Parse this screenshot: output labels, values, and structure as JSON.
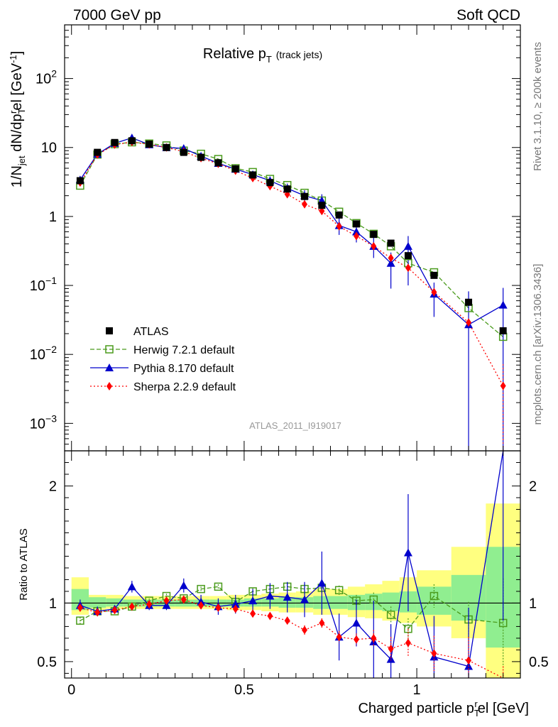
{
  "header": {
    "left": "7000 GeV pp",
    "right": "Soft QCD"
  },
  "side_labels": {
    "rivet": "Rivet 3.1.10, ≥ 200k events",
    "mcplots": "mcplots.cern.ch [arXiv:1306.3436]"
  },
  "chart_data": {
    "type": "line",
    "title_main": "Relative p",
    "title_sub": "T",
    "title_tail": "(track jets)",
    "analysis_id": "ATLAS_2011_I919017",
    "xlabel": "Charged particle p",
    "xlabel_sub": "T",
    "xlabel_sup": "r",
    "xlabel_tail": "el [GeV]",
    "ylabel": "1/N",
    "ylabel_sub": "jet",
    "ylabel_mid": " dN/dp",
    "ylabel_sub2": "T",
    "ylabel_sup2": "r",
    "ylabel_tail": "el [GeV",
    "ylabel_sup3": "-1",
    "ylabel_end": "]",
    "ratio_ylabel": "Ratio to ATLAS",
    "xlim": [
      -0.02,
      1.3
    ],
    "ylim_log": [
      0.0004,
      600
    ],
    "ratio_ylim": [
      0.36,
      2.3
    ],
    "x_ticks": [
      "0",
      "0.5",
      "1"
    ],
    "x_tick_values": [
      0,
      0.5,
      1
    ],
    "y_ticks": [
      {
        "base": "10",
        "exp": "2",
        "value": 100
      },
      {
        "base": "10",
        "exp": "",
        "value": 10
      },
      {
        "base": "1",
        "exp": "",
        "value": 1
      },
      {
        "base": "10",
        "exp": "−1",
        "value": 0.1
      },
      {
        "base": "10",
        "exp": "−2",
        "value": 0.01
      },
      {
        "base": "10",
        "exp": "−3",
        "value": 0.001
      }
    ],
    "ratio_ticks": [
      "2",
      "1",
      "0.5"
    ],
    "ratio_tick_values": [
      2,
      1,
      0.5
    ],
    "bin_edges": [
      0,
      0.05,
      0.1,
      0.15,
      0.2,
      0.25,
      0.3,
      0.35,
      0.4,
      0.45,
      0.5,
      0.55,
      0.6,
      0.65,
      0.7,
      0.75,
      0.8,
      0.85,
      0.9,
      0.95,
      1.0,
      1.1,
      1.2,
      1.3
    ],
    "x": [
      0.025,
      0.075,
      0.125,
      0.175,
      0.225,
      0.275,
      0.325,
      0.375,
      0.425,
      0.475,
      0.525,
      0.575,
      0.625,
      0.675,
      0.725,
      0.775,
      0.825,
      0.875,
      0.925,
      0.975,
      1.05,
      1.15,
      1.25
    ],
    "band_inner": [
      [
        0.94,
        1.12
      ],
      [
        0.96,
        1.05
      ],
      [
        0.97,
        1.04
      ],
      [
        0.97,
        1.03
      ],
      [
        0.97,
        1.03
      ],
      [
        0.97,
        1.03
      ],
      [
        0.97,
        1.03
      ],
      [
        0.97,
        1.03
      ],
      [
        0.97,
        1.03
      ],
      [
        0.97,
        1.03
      ],
      [
        0.97,
        1.04
      ],
      [
        0.97,
        1.04
      ],
      [
        0.96,
        1.05
      ],
      [
        0.96,
        1.05
      ],
      [
        0.95,
        1.06
      ],
      [
        0.95,
        1.06
      ],
      [
        0.94,
        1.07
      ],
      [
        0.94,
        1.08
      ],
      [
        0.93,
        1.09
      ],
      [
        0.92,
        1.1
      ],
      [
        0.9,
        1.14
      ],
      [
        0.85,
        1.24
      ],
      [
        0.62,
        1.48
      ]
    ],
    "band_outer": [
      [
        0.9,
        1.22
      ],
      [
        0.94,
        1.07
      ],
      [
        0.95,
        1.07
      ],
      [
        0.95,
        1.06
      ],
      [
        0.95,
        1.06
      ],
      [
        0.95,
        1.06
      ],
      [
        0.95,
        1.06
      ],
      [
        0.95,
        1.06
      ],
      [
        0.95,
        1.06
      ],
      [
        0.94,
        1.07
      ],
      [
        0.94,
        1.07
      ],
      [
        0.93,
        1.08
      ],
      [
        0.92,
        1.09
      ],
      [
        0.92,
        1.1
      ],
      [
        0.9,
        1.12
      ],
      [
        0.9,
        1.12
      ],
      [
        0.88,
        1.14
      ],
      [
        0.87,
        1.16
      ],
      [
        0.85,
        1.19
      ],
      [
        0.83,
        1.22
      ],
      [
        0.8,
        1.28
      ],
      [
        0.7,
        1.48
      ],
      [
        0.36,
        1.85
      ]
    ],
    "series": [
      {
        "name": "ATLAS",
        "style": "data",
        "color": "#000000",
        "values": [
          3.3,
          8.5,
          11.8,
          12.5,
          11.2,
          10.0,
          8.5,
          7.2,
          6.0,
          4.9,
          4.0,
          3.1,
          2.5,
          1.95,
          1.45,
          1.05,
          0.78,
          0.55,
          0.41,
          0.27,
          0.14,
          0.057,
          0.022
        ]
      },
      {
        "name": "Herwig 7.2.1 default",
        "style": "herwig",
        "color": "#4a9b1c",
        "values": [
          2.8,
          7.9,
          11.2,
          11.9,
          11.4,
          10.7,
          9.0,
          8.1,
          6.8,
          5.0,
          4.4,
          3.5,
          2.85,
          2.2,
          1.7,
          1.17,
          0.8,
          0.56,
          0.37,
          0.21,
          0.155,
          0.047,
          0.018
        ],
        "ratio": [
          0.85,
          0.93,
          0.93,
          0.97,
          1.02,
          1.06,
          1.04,
          1.12,
          1.14,
          1.01,
          1.1,
          1.12,
          1.14,
          1.12,
          1.13,
          1.11,
          1.02,
          1.03,
          0.9,
          0.78,
          1.06,
          0.86,
          0.83
        ],
        "ratio_err": [
          0.03,
          0.02,
          0.02,
          0.02,
          0.02,
          0.02,
          0.02,
          0.02,
          0.02,
          0.02,
          0.03,
          0.03,
          0.03,
          0.04,
          0.04,
          0.04,
          0.05,
          0.06,
          0.07,
          0.09,
          0.1,
          0.15,
          0.38
        ]
      },
      {
        "name": "Pythia 8.170 default",
        "style": "pythia",
        "color": "#0000cc",
        "values": [
          3.4,
          8.0,
          11.5,
          13.8,
          11.0,
          10.0,
          9.7,
          7.5,
          5.9,
          4.85,
          4.05,
          3.3,
          2.55,
          2.0,
          1.7,
          0.74,
          0.6,
          0.37,
          0.21,
          0.37,
          0.075,
          0.027,
          0.052
        ],
        "ratio": [
          0.98,
          0.93,
          0.95,
          1.14,
          0.98,
          0.98,
          1.15,
          1.01,
          0.97,
          0.99,
          1.02,
          1.06,
          1.05,
          1.03,
          1.17,
          0.71,
          0.83,
          0.67,
          0.52,
          1.43,
          0.54,
          0.46,
          2.35
        ],
        "ratio_err": [
          0.05,
          0.04,
          0.03,
          0.05,
          0.04,
          0.04,
          0.06,
          0.06,
          0.07,
          0.08,
          0.1,
          0.11,
          0.13,
          0.15,
          0.27,
          0.2,
          0.2,
          0.35,
          0.3,
          0.5,
          0.35,
          0.5,
          1.5
        ],
        "err_upper": [
          0.3,
          0.7,
          0.8,
          1.1,
          0.8,
          0.8,
          1.0,
          0.8,
          0.6,
          0.6,
          0.5,
          0.5,
          0.45,
          0.4,
          0.4,
          0.2,
          0.18,
          0.12,
          0.09,
          0.15,
          0.035,
          0.055,
          0.04
        ],
        "err_lower": [
          0.3,
          0.7,
          0.8,
          1.1,
          0.8,
          0.8,
          1.0,
          0.8,
          0.6,
          0.6,
          0.5,
          0.5,
          0.45,
          0.4,
          0.4,
          0.2,
          0.18,
          0.12,
          0.12,
          0.27,
          0.04,
          0.0268,
          0.0518
        ]
      },
      {
        "name": "Sherpa 2.2.9 default",
        "style": "sherpa",
        "color": "#ff0000",
        "values": [
          3.1,
          7.9,
          11.0,
          12.0,
          11.1,
          10.0,
          8.7,
          7.0,
          5.8,
          4.6,
          3.6,
          2.75,
          2.1,
          1.5,
          1.2,
          0.72,
          0.52,
          0.37,
          0.25,
          0.18,
          0.08,
          0.029,
          0.0035
        ],
        "ratio": [
          0.96,
          0.92,
          0.94,
          0.97,
          0.99,
          1.02,
          1.03,
          0.98,
          0.96,
          0.95,
          0.91,
          0.89,
          0.85,
          0.77,
          0.83,
          0.71,
          0.69,
          0.7,
          0.61,
          0.66,
          0.57,
          0.51,
          0.16
        ],
        "ratio_err": [
          0.03,
          0.02,
          0.02,
          0.02,
          0.02,
          0.02,
          0.02,
          0.02,
          0.02,
          0.02,
          0.03,
          0.03,
          0.03,
          0.04,
          0.04,
          0.05,
          0.05,
          0.07,
          0.1,
          0.12,
          0.15,
          0.2,
          0.3
        ]
      }
    ],
    "legend": {
      "placement": "bottom-left"
    }
  }
}
